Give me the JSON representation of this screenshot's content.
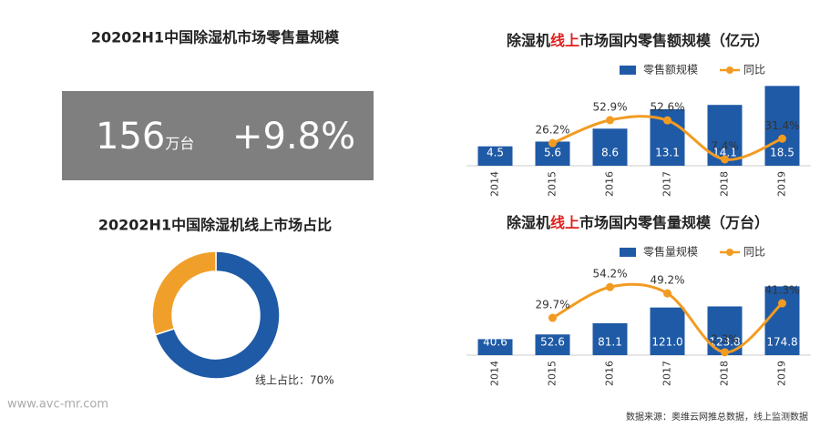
{
  "kpi": {
    "title": "20202H1中国除湿机市场零售量规模",
    "value": 156,
    "unit": "万台",
    "growth": "+9.8%"
  },
  "chart_data": [
    {
      "type": "pie",
      "donut": true,
      "title": "20202H1中国除湿机线上市场占比",
      "values": [
        70,
        30
      ],
      "value_labels": [
        "线上占比：70%",
        null
      ],
      "colors": [
        "#1f5aa6",
        "#f0a02a"
      ]
    },
    {
      "type": "bar",
      "title": [
        "除湿机",
        "线上",
        "市场国内零售额规模（亿元）"
      ],
      "categories": [
        "2014",
        "2015",
        "2016",
        "2017",
        "2018",
        "2019"
      ],
      "series": [
        {
          "name": "零售额规模",
          "color": "#1f5aa6",
          "values": [
            4.5,
            5.6,
            8.6,
            13.1,
            14.1,
            18.5
          ]
        },
        {
          "name": "同比",
          "type": "line",
          "axis": "y2",
          "color": "#f29b22",
          "values": [
            null,
            26.2,
            52.9,
            52.6,
            7.4,
            31.4
          ],
          "value_labels": [
            null,
            "26.2%",
            "52.9%",
            "52.6%",
            "7.4%",
            "31.4%"
          ]
        }
      ],
      "ylim": [
        0,
        19
      ],
      "y2lim": [
        0,
        95
      ],
      "legend": "top-right"
    },
    {
      "type": "bar",
      "title": [
        "除湿机",
        "线上",
        "市场国内零售量规模（万台）"
      ],
      "categories": [
        "2014",
        "2015",
        "2016",
        "2017",
        "2018",
        "2019"
      ],
      "series": [
        {
          "name": "零售量规模",
          "color": "#1f5aa6",
          "values": [
            40.6,
            52.6,
            81.1,
            121,
            123.8,
            174.8
          ],
          "value_labels": [
            "40.6",
            "52.6",
            "81.1",
            "121.0",
            "123.8",
            "174.8"
          ]
        },
        {
          "name": "同比",
          "type": "line",
          "axis": "y2",
          "color": "#f29b22",
          "values": [
            null,
            29.7,
            54.2,
            49.2,
            2.3,
            41.3
          ],
          "value_labels": [
            null,
            "29.7%",
            "54.2%",
            "49.2%",
            "2.3%",
            "41.3%"
          ]
        }
      ],
      "ylim": [
        0,
        185
      ],
      "y2lim": [
        0,
        58
      ],
      "legend": "top-right"
    }
  ],
  "footer": {
    "website": "www.avc-mr.com",
    "source": "数据来源：奥维云网推总数据，线上监测数据"
  }
}
